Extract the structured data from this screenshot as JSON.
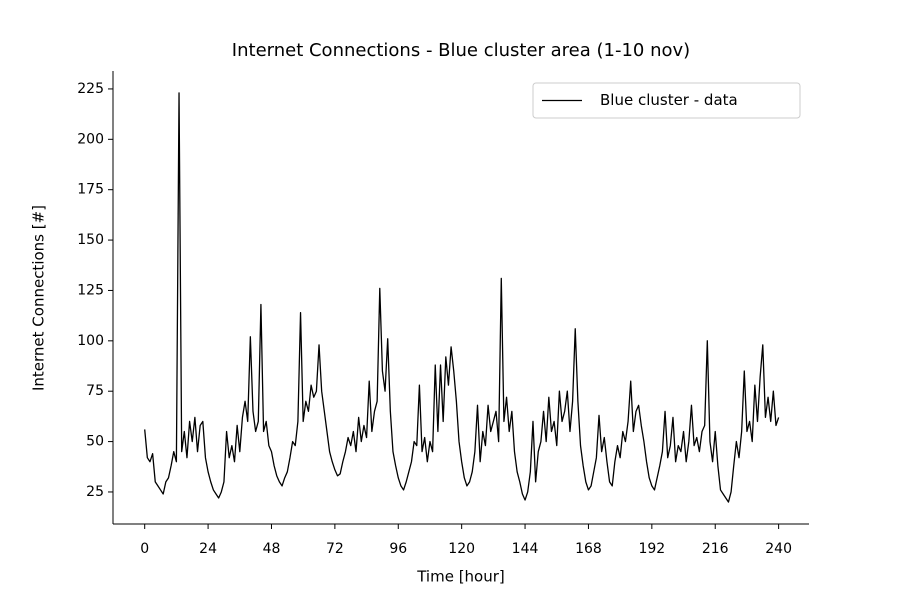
{
  "chart_data": {
    "type": "line",
    "title": "Internet Connections - Blue cluster area (1-10 nov)",
    "xlabel": "Time [hour]",
    "ylabel": "Internet Connections [#]",
    "legend": "upper right",
    "series": [
      {
        "name": "Blue cluster - data",
        "color": "#000000",
        "x": [
          0,
          1,
          2,
          3,
          4,
          5,
          6,
          7,
          8,
          9,
          10,
          11,
          12,
          13,
          14,
          15,
          16,
          17,
          18,
          19,
          20,
          21,
          22,
          23,
          24,
          25,
          26,
          27,
          28,
          29,
          30,
          31,
          32,
          33,
          34,
          35,
          36,
          37,
          38,
          39,
          40,
          41,
          42,
          43,
          44,
          45,
          46,
          47,
          48,
          49,
          50,
          51,
          52,
          53,
          54,
          55,
          56,
          57,
          58,
          59,
          60,
          61,
          62,
          63,
          64,
          65,
          66,
          67,
          68,
          69,
          70,
          71,
          72,
          73,
          74,
          75,
          76,
          77,
          78,
          79,
          80,
          81,
          82,
          83,
          84,
          85,
          86,
          87,
          88,
          89,
          90,
          91,
          92,
          93,
          94,
          95,
          96,
          97,
          98,
          99,
          100,
          101,
          102,
          103,
          104,
          105,
          106,
          107,
          108,
          109,
          110,
          111,
          112,
          113,
          114,
          115,
          116,
          117,
          118,
          119,
          120,
          121,
          122,
          123,
          124,
          125,
          126,
          127,
          128,
          129,
          130,
          131,
          132,
          133,
          134,
          135,
          136,
          137,
          138,
          139,
          140,
          141,
          142,
          143,
          144,
          145,
          146,
          147,
          148,
          149,
          150,
          151,
          152,
          153,
          154,
          155,
          156,
          157,
          158,
          159,
          160,
          161,
          162,
          163,
          164,
          165,
          166,
          167,
          168,
          169,
          170,
          171,
          172,
          173,
          174,
          175,
          176,
          177,
          178,
          179,
          180,
          181,
          182,
          183,
          184,
          185,
          186,
          187,
          188,
          189,
          190,
          191,
          192,
          193,
          194,
          195,
          196,
          197,
          198,
          199,
          200,
          201,
          202,
          203,
          204,
          205,
          206,
          207,
          208,
          209,
          210,
          211,
          212,
          213,
          214,
          215,
          216,
          217,
          218,
          219,
          220,
          221,
          222,
          223,
          224,
          225,
          226,
          227,
          228,
          229,
          230,
          231,
          232,
          233,
          234,
          235,
          236,
          237,
          238,
          239,
          240
        ],
        "values": [
          56,
          42,
          40,
          44,
          30,
          28,
          26,
          24,
          30,
          32,
          38,
          45,
          40,
          223,
          45,
          55,
          42,
          60,
          50,
          62,
          45,
          58,
          60,
          42,
          35,
          30,
          26,
          24,
          22,
          25,
          30,
          55,
          42,
          48,
          40,
          58,
          45,
          62,
          70,
          60,
          102,
          65,
          55,
          60,
          118,
          55,
          60,
          48,
          45,
          38,
          33,
          30,
          28,
          32,
          35,
          42,
          50,
          48,
          60,
          114,
          60,
          70,
          65,
          78,
          72,
          75,
          98,
          75,
          65,
          55,
          45,
          40,
          36,
          33,
          34,
          40,
          45,
          52,
          48,
          55,
          45,
          62,
          50,
          58,
          52,
          80,
          55,
          65,
          70,
          126,
          85,
          75,
          101,
          65,
          45,
          38,
          32,
          28,
          26,
          30,
          35,
          40,
          50,
          48,
          78,
          45,
          52,
          40,
          50,
          45,
          88,
          55,
          88,
          60,
          92,
          78,
          97,
          85,
          70,
          50,
          40,
          32,
          28,
          30,
          35,
          45,
          68,
          40,
          55,
          48,
          68,
          55,
          60,
          65,
          50,
          131,
          60,
          72,
          55,
          65,
          45,
          35,
          30,
          24,
          21,
          25,
          35,
          60,
          30,
          45,
          50,
          65,
          50,
          72,
          55,
          60,
          48,
          75,
          60,
          65,
          75,
          55,
          70,
          106,
          70,
          48,
          38,
          30,
          26,
          28,
          35,
          42,
          63,
          45,
          52,
          40,
          30,
          28,
          40,
          48,
          42,
          55,
          50,
          60,
          80,
          55,
          65,
          68,
          58,
          50,
          40,
          32,
          28,
          26,
          32,
          38,
          45,
          65,
          42,
          48,
          62,
          40,
          48,
          45,
          55,
          40,
          50,
          68,
          48,
          52,
          45,
          55,
          58,
          100,
          50,
          40,
          55,
          38,
          26,
          24,
          22,
          20,
          25,
          38,
          50,
          42,
          55,
          85,
          55,
          60,
          50,
          78,
          60,
          82,
          98,
          62,
          72,
          60,
          75,
          58,
          62
        ]
      }
    ],
    "xlim": [
      -12,
      251.5
    ],
    "xticks": [
      0,
      24,
      48,
      72,
      96,
      120,
      144,
      168,
      192,
      216,
      240
    ],
    "ylim": [
      9.1,
      233.9
    ],
    "yticks": [
      25,
      50,
      75,
      100,
      125,
      150,
      175,
      200,
      225
    ]
  }
}
